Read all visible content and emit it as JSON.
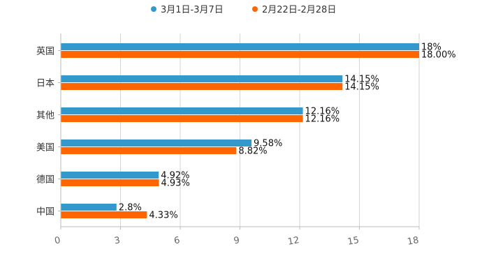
{
  "chart_data": {
    "type": "bar",
    "orientation": "horizontal",
    "title": "",
    "xlabel": "",
    "ylabel": "",
    "xlim": [
      0,
      18
    ],
    "x_ticks": [
      0,
      3,
      6,
      9,
      12,
      15,
      18
    ],
    "categories": [
      "英国",
      "日本",
      "其他",
      "美国",
      "德国",
      "中国"
    ],
    "series": [
      {
        "name": "3月1日-3月7日",
        "color": "#3399cc",
        "values": [
          18,
          14.15,
          12.16,
          9.58,
          4.92,
          2.8
        ],
        "labels": [
          "18%",
          "14.15%",
          "12.16%",
          "9.58%",
          "4.92%",
          "2.8%"
        ]
      },
      {
        "name": "2月22日-2月28日",
        "color": "#ff6600",
        "values": [
          18.0,
          14.15,
          12.16,
          8.82,
          4.93,
          4.33
        ],
        "labels": [
          "18.00%",
          "14.15%",
          "12.16%",
          "8.82%",
          "4.93%",
          "4.33%"
        ]
      }
    ],
    "legend": "top-center",
    "grid": "vertical"
  }
}
